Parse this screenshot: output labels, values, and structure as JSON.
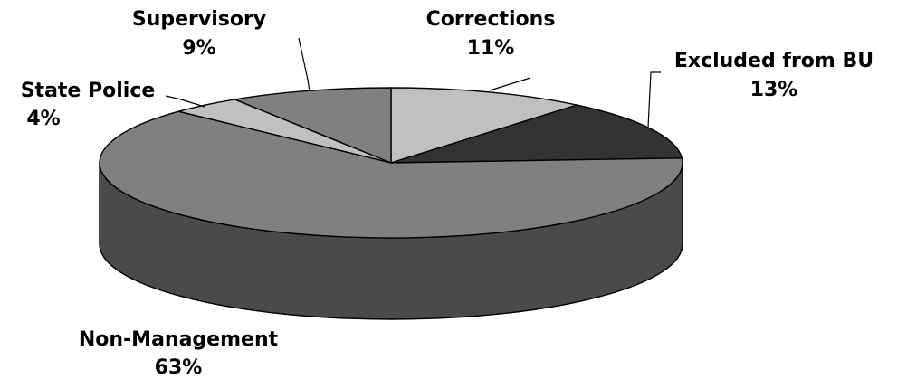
{
  "chart_data": {
    "type": "pie",
    "title": "",
    "three_d": true,
    "slices": [
      {
        "label": "Corrections",
        "percent_label": "11%",
        "value": 11,
        "color": "#c0c0c0",
        "side_color": "#8a8a8a"
      },
      {
        "label": "Excluded from BU",
        "percent_label": "13%",
        "value": 13,
        "color": "#333333",
        "side_color": "#1e1e1e"
      },
      {
        "label": "Non-Management",
        "percent_label": "63%",
        "value": 63,
        "color": "#808080",
        "side_color": "#4a4a4a"
      },
      {
        "label": "State Police",
        "percent_label": "4%",
        "value": 4,
        "color": "#c0c0c0",
        "side_color": "#8a8a8a"
      },
      {
        "label": "Supervisory",
        "percent_label": "9%",
        "value": 9,
        "color": "#808080",
        "side_color": "#4a4a4a"
      }
    ]
  }
}
